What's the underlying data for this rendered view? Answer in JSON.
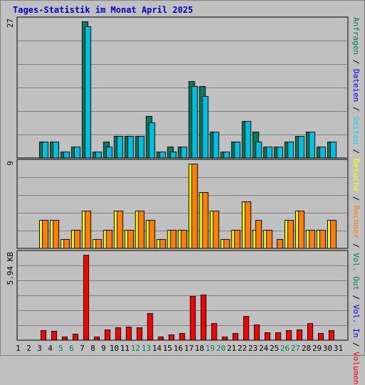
{
  "title": "Tages-Statistik im Monat April 2025",
  "colors": {
    "background": "#c0c0c0",
    "title": "#0000c8",
    "anfragen": "#008060",
    "dateien": "#00c0e0",
    "seiten": "#00e0ff",
    "besuche": "#ffff00",
    "rechner": "#ff8000",
    "volumen": "#ff0000",
    "weekend_label": "#008060"
  },
  "legend": [
    {
      "label": "Volumen",
      "color": "#ff0000"
    },
    {
      "label": "Vol. In",
      "color": "#0000ff"
    },
    {
      "label": "Vol. Out",
      "color": "#008060"
    },
    {
      "label": "Rechner",
      "color": "#ff8000"
    },
    {
      "label": "Besuche",
      "color": "#ffff00"
    },
    {
      "label": "Seiten",
      "color": "#00e0ff"
    },
    {
      "label": "Dateien",
      "color": "#0000ff"
    },
    {
      "label": "Anfragen",
      "color": "#008060"
    }
  ],
  "chart_data": [
    {
      "type": "bar",
      "panel": "hits",
      "max_label": "27",
      "ylim": [
        0,
        27
      ],
      "categories": [
        "1",
        "2",
        "3",
        "4",
        "5",
        "6",
        "7",
        "8",
        "9",
        "10",
        "11",
        "12",
        "13",
        "14",
        "15",
        "16",
        "17",
        "18",
        "19",
        "20",
        "21",
        "22",
        "23",
        "24",
        "25",
        "26",
        "27",
        "28",
        "29",
        "30",
        "31"
      ],
      "weekend": [
        "5",
        "6",
        "12",
        "13",
        "19",
        "20",
        "26",
        "27"
      ],
      "series": [
        {
          "name": "Anfragen",
          "values": [
            0,
            0,
            3.3,
            3.3,
            1.2,
            2.2,
            27,
            1.2,
            3.3,
            4.3,
            4.3,
            4.3,
            8.3,
            1.2,
            2.2,
            2.2,
            15.2,
            14.2,
            5.2,
            1.2,
            3.3,
            7.3,
            5.2,
            2.2,
            2.2,
            3.3,
            4.3,
            5.2,
            2.2,
            3.3,
            0
          ]
        },
        {
          "name": "Dateien",
          "values": [
            0,
            0,
            3.3,
            3.3,
            1.2,
            2.2,
            26,
            1.2,
            2.2,
            4.3,
            4.3,
            4.3,
            7.1,
            1.2,
            1.2,
            2.2,
            14.2,
            12.2,
            5.2,
            1.2,
            3.3,
            7.3,
            3.3,
            2.2,
            2.2,
            3.3,
            4.3,
            5.2,
            2.2,
            3.3,
            0
          ]
        }
      ]
    },
    {
      "type": "bar",
      "panel": "visits",
      "max_label": "9",
      "ylim": [
        0,
        9
      ],
      "categories": [
        "1",
        "2",
        "3",
        "4",
        "5",
        "6",
        "7",
        "8",
        "9",
        "10",
        "11",
        "12",
        "13",
        "14",
        "15",
        "16",
        "17",
        "18",
        "19",
        "20",
        "21",
        "22",
        "23",
        "24",
        "25",
        "26",
        "27",
        "28",
        "29",
        "30",
        "31"
      ],
      "series": [
        {
          "name": "Besuche",
          "values": [
            0,
            0,
            3,
            3,
            1,
            2,
            4,
            1,
            2,
            4,
            2,
            4,
            3,
            1,
            2,
            2,
            9,
            6,
            4,
            1,
            2,
            5,
            2,
            2,
            0,
            3,
            4,
            2,
            2,
            3,
            0
          ]
        },
        {
          "name": "Rechner",
          "values": [
            0,
            0,
            3,
            3,
            1,
            2,
            4,
            1,
            2,
            4,
            2,
            4,
            3,
            1,
            2,
            2,
            9,
            6,
            4,
            1,
            2,
            5,
            3,
            2,
            1,
            3,
            4,
            2,
            2,
            3,
            0
          ]
        }
      ]
    },
    {
      "type": "bar",
      "panel": "volume",
      "max_label": "5.94 KB",
      "ylim": [
        0,
        5.94
      ],
      "unit": "KB",
      "categories": [
        "1",
        "2",
        "3",
        "4",
        "5",
        "6",
        "7",
        "8",
        "9",
        "10",
        "11",
        "12",
        "13",
        "14",
        "15",
        "16",
        "17",
        "18",
        "19",
        "20",
        "21",
        "22",
        "23",
        "24",
        "25",
        "26",
        "27",
        "28",
        "29",
        "30",
        "31"
      ],
      "series": [
        {
          "name": "Volumen",
          "values": [
            0,
            0,
            0.71,
            0.66,
            0.27,
            0.46,
            5.94,
            0.25,
            0.72,
            0.91,
            0.93,
            0.89,
            1.86,
            0.26,
            0.42,
            0.49,
            3.05,
            3.18,
            1.19,
            0.26,
            0.48,
            1.67,
            1.07,
            0.52,
            0.52,
            0.71,
            0.72,
            1.18,
            0.51,
            0.67,
            0
          ]
        }
      ]
    }
  ]
}
